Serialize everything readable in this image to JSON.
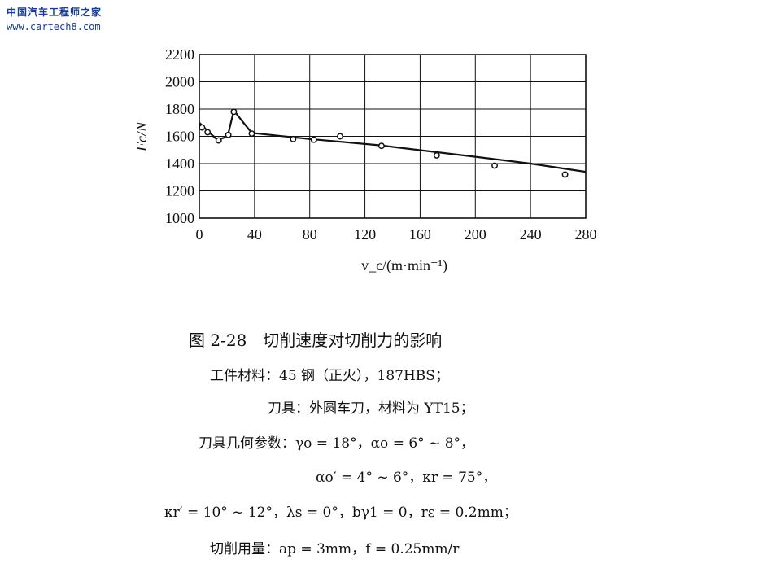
{
  "watermark": {
    "site_name": "中国汽车工程师之家",
    "url": "www.cartech8.com"
  },
  "chart_data": {
    "type": "line",
    "xlabel": "v_c/(m·min⁻¹)",
    "ylabel": "Fc/N",
    "xlim": [
      0,
      280
    ],
    "ylim": [
      1000,
      2200
    ],
    "xticks": [
      0,
      40,
      80,
      120,
      160,
      200,
      240,
      280
    ],
    "yticks": [
      1000,
      1200,
      1400,
      1600,
      1800,
      2000,
      2200
    ],
    "grid": true,
    "points": [
      {
        "x": 2,
        "y": 1665
      },
      {
        "x": 6,
        "y": 1630
      },
      {
        "x": 14,
        "y": 1570
      },
      {
        "x": 21,
        "y": 1610
      },
      {
        "x": 25,
        "y": 1780
      },
      {
        "x": 38,
        "y": 1620
      },
      {
        "x": 68,
        "y": 1580
      },
      {
        "x": 83,
        "y": 1575
      },
      {
        "x": 102,
        "y": 1600
      },
      {
        "x": 132,
        "y": 1530
      },
      {
        "x": 172,
        "y": 1460
      },
      {
        "x": 214,
        "y": 1385
      },
      {
        "x": 265,
        "y": 1320
      }
    ],
    "curve": [
      {
        "x": 0,
        "y": 1700
      },
      {
        "x": 3,
        "y": 1670
      },
      {
        "x": 7,
        "y": 1630
      },
      {
        "x": 13,
        "y": 1575
      },
      {
        "x": 18,
        "y": 1590
      },
      {
        "x": 21,
        "y": 1620
      },
      {
        "x": 25,
        "y": 1790
      },
      {
        "x": 32,
        "y": 1700
      },
      {
        "x": 38,
        "y": 1625
      },
      {
        "x": 80,
        "y": 1580
      },
      {
        "x": 130,
        "y": 1535
      },
      {
        "x": 200,
        "y": 1450
      },
      {
        "x": 240,
        "y": 1400
      },
      {
        "x": 280,
        "y": 1340
      }
    ]
  },
  "caption": {
    "figure_title": "图 2-28　切削速度对切削力的影响",
    "lines": [
      "工件材料：45 钢（正火），187HBS；",
      "刀具：外圆车刀，材料为 YT15；",
      "刀具几何参数：γo = 18°，αo = 6° ~ 8°，",
      "αo′ = 4° ~ 6°，κr = 75°，",
      "κr′ = 10° ~ 12°，λs = 0°，bγ1 = 0，rε = 0.2mm；",
      "切削用量：ap = 3mm，f = 0.25mm/r"
    ]
  }
}
